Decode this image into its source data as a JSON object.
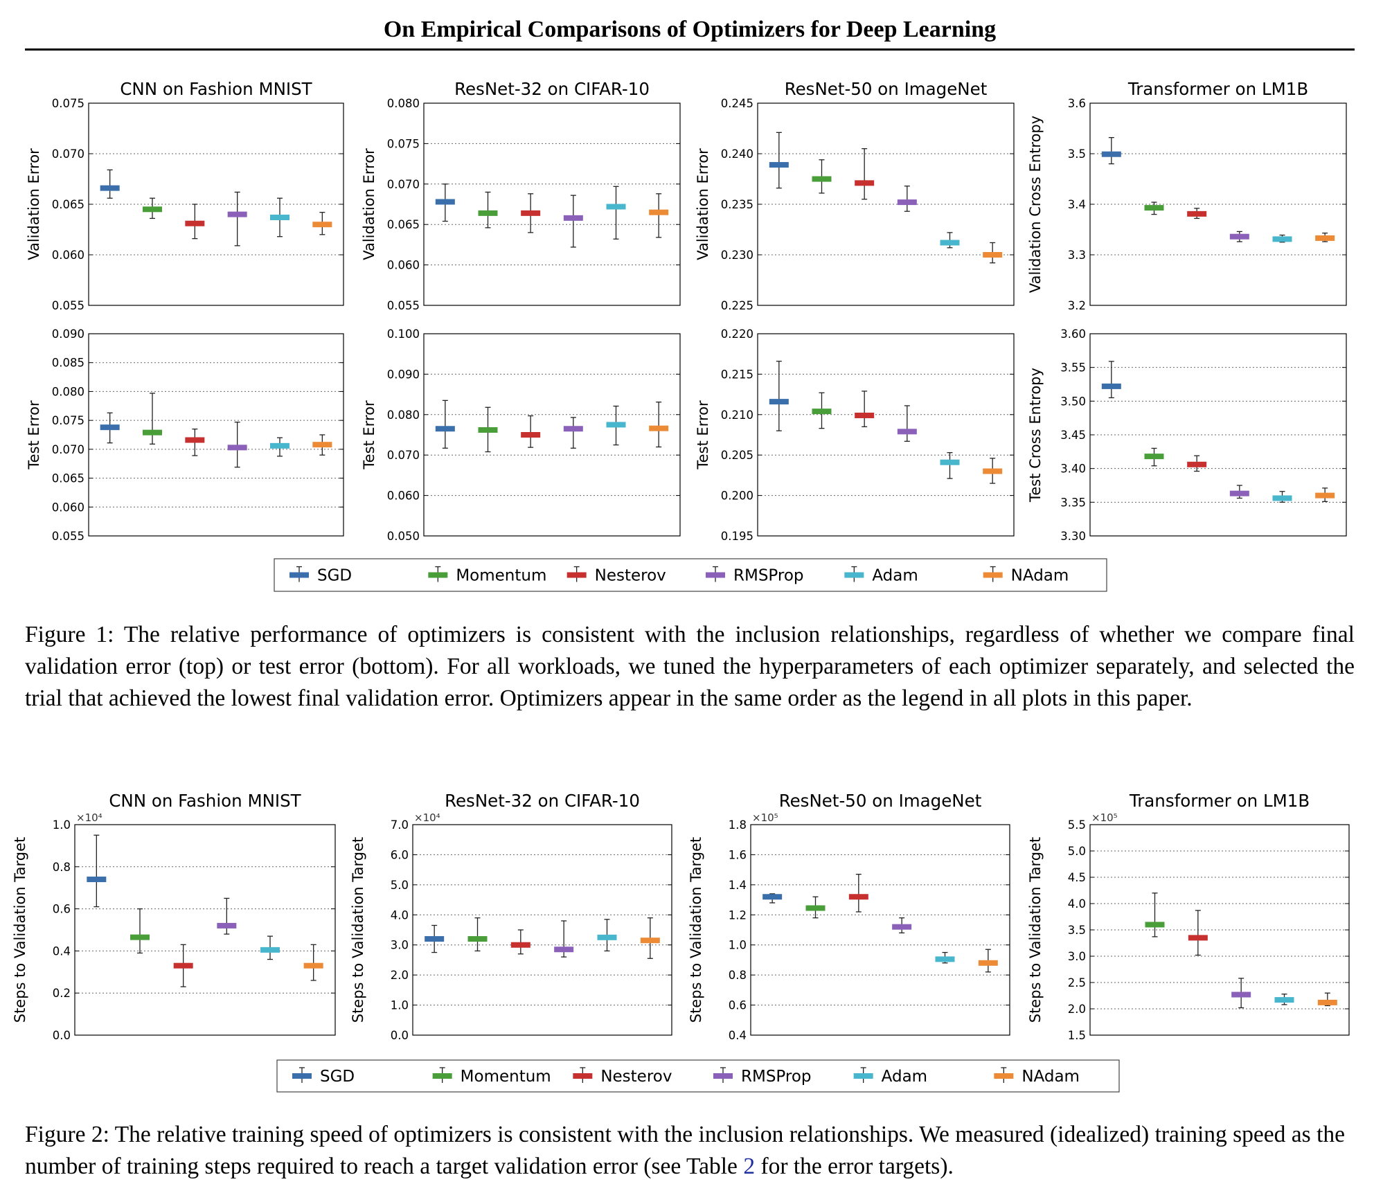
{
  "header": {
    "title": "On Empirical Comparisons of Optimizers for Deep Learning"
  },
  "legend": {
    "items": [
      {
        "label": "SGD",
        "color": "#3a6fab"
      },
      {
        "label": "Momentum",
        "color": "#4a9e3a"
      },
      {
        "label": "Nesterov",
        "color": "#c6302e"
      },
      {
        "label": "RMSProp",
        "color": "#8a60b8"
      },
      {
        "label": "Adam",
        "color": "#48b6cc"
      },
      {
        "label": "NAdam",
        "color": "#ec8a36"
      }
    ]
  },
  "figure1": {
    "caption": "Figure 1: The relative performance of optimizers is consistent with the inclusion relationships, regardless of whether we compare final validation error (top) or test error (bottom). For all workloads, we tuned the hyperparameters of each optimizer separately, and selected the trial that achieved the lowest final validation error. Optimizers appear in the same order as the legend in all plots in this paper."
  },
  "figure2": {
    "caption_before": "Figure 2: The relative training speed of optimizers is consistent with the inclusion relationships. We measured (idealized) training speed as the number of training steps required to reach a target validation error (see Table ",
    "caption_ref": "2",
    "caption_after": " for the error targets)."
  },
  "chart_data": [
    {
      "type": "scatter",
      "title": "CNN on Fashion MNIST",
      "ylabel": "Validation Error",
      "ylim": [
        0.055,
        0.075
      ],
      "yticks": [
        "0.055",
        "0.060",
        "0.065",
        "0.070",
        "0.075"
      ],
      "multiplier": "",
      "grid": true,
      "series": [
        {
          "name": "SGD",
          "value": 0.0666,
          "low": 0.0656,
          "high": 0.0684
        },
        {
          "name": "Momentum",
          "value": 0.0645,
          "low": 0.0636,
          "high": 0.0656
        },
        {
          "name": "Nesterov",
          "value": 0.0631,
          "low": 0.0616,
          "high": 0.065
        },
        {
          "name": "RMSProp",
          "value": 0.064,
          "low": 0.0609,
          "high": 0.0662
        },
        {
          "name": "Adam",
          "value": 0.0637,
          "low": 0.0618,
          "high": 0.0656
        },
        {
          "name": "NAdam",
          "value": 0.063,
          "low": 0.062,
          "high": 0.0642
        }
      ]
    },
    {
      "type": "scatter",
      "title": "ResNet-32 on CIFAR-10",
      "ylabel": "Validation Error",
      "ylim": [
        0.055,
        0.08
      ],
      "yticks": [
        "0.055",
        "0.060",
        "0.065",
        "0.070",
        "0.075",
        "0.080"
      ],
      "multiplier": "",
      "grid": true,
      "series": [
        {
          "name": "SGD",
          "value": 0.0678,
          "low": 0.0654,
          "high": 0.07
        },
        {
          "name": "Momentum",
          "value": 0.0664,
          "low": 0.0646,
          "high": 0.069
        },
        {
          "name": "Nesterov",
          "value": 0.0664,
          "low": 0.064,
          "high": 0.0688
        },
        {
          "name": "RMSProp",
          "value": 0.0658,
          "low": 0.0622,
          "high": 0.0686
        },
        {
          "name": "Adam",
          "value": 0.0672,
          "low": 0.0632,
          "high": 0.0697
        },
        {
          "name": "NAdam",
          "value": 0.0665,
          "low": 0.0634,
          "high": 0.0688
        }
      ]
    },
    {
      "type": "scatter",
      "title": "ResNet-50 on ImageNet",
      "ylabel": "Validation Error",
      "ylim": [
        0.225,
        0.245
      ],
      "yticks": [
        "0.225",
        "0.230",
        "0.235",
        "0.240",
        "0.245"
      ],
      "multiplier": "",
      "grid": true,
      "series": [
        {
          "name": "SGD",
          "value": 0.2389,
          "low": 0.2366,
          "high": 0.2421
        },
        {
          "name": "Momentum",
          "value": 0.2375,
          "low": 0.2361,
          "high": 0.2394
        },
        {
          "name": "Nesterov",
          "value": 0.2371,
          "low": 0.2355,
          "high": 0.2405
        },
        {
          "name": "RMSProp",
          "value": 0.2352,
          "low": 0.2343,
          "high": 0.2368
        },
        {
          "name": "Adam",
          "value": 0.2312,
          "low": 0.2307,
          "high": 0.2322
        },
        {
          "name": "NAdam",
          "value": 0.23,
          "low": 0.2292,
          "high": 0.2312
        }
      ]
    },
    {
      "type": "scatter",
      "title": "Transformer on LM1B",
      "ylabel": "Validation Cross Entropy",
      "ylim": [
        3.2,
        3.6
      ],
      "yticks": [
        "3.2",
        "3.3",
        "3.4",
        "3.5",
        "3.6"
      ],
      "multiplier": "",
      "grid": true,
      "series": [
        {
          "name": "SGD",
          "value": 3.499,
          "low": 3.48,
          "high": 3.532
        },
        {
          "name": "Momentum",
          "value": 3.393,
          "low": 3.38,
          "high": 3.404
        },
        {
          "name": "Nesterov",
          "value": 3.381,
          "low": 3.372,
          "high": 3.392
        },
        {
          "name": "RMSProp",
          "value": 3.336,
          "low": 3.326,
          "high": 3.346
        },
        {
          "name": "Adam",
          "value": 3.331,
          "low": 3.325,
          "high": 3.339
        },
        {
          "name": "NAdam",
          "value": 3.333,
          "low": 3.326,
          "high": 3.343
        }
      ]
    },
    {
      "type": "scatter",
      "title": "",
      "ylabel": "Test Error",
      "ylim": [
        0.055,
        0.09
      ],
      "yticks": [
        "0.055",
        "0.060",
        "0.065",
        "0.070",
        "0.075",
        "0.080",
        "0.085",
        "0.090"
      ],
      "multiplier": "",
      "grid": true,
      "series": [
        {
          "name": "SGD",
          "value": 0.0738,
          "low": 0.0711,
          "high": 0.0763
        },
        {
          "name": "Momentum",
          "value": 0.0729,
          "low": 0.0709,
          "high": 0.0797
        },
        {
          "name": "Nesterov",
          "value": 0.0716,
          "low": 0.0689,
          "high": 0.0735
        },
        {
          "name": "RMSProp",
          "value": 0.0703,
          "low": 0.0669,
          "high": 0.0747
        },
        {
          "name": "Adam",
          "value": 0.0706,
          "low": 0.0688,
          "high": 0.072
        },
        {
          "name": "NAdam",
          "value": 0.0708,
          "low": 0.069,
          "high": 0.0725
        }
      ]
    },
    {
      "type": "scatter",
      "title": "",
      "ylabel": "Test Error",
      "ylim": [
        0.05,
        0.1
      ],
      "yticks": [
        "0.050",
        "0.060",
        "0.070",
        "0.080",
        "0.090",
        "0.100"
      ],
      "multiplier": "",
      "grid": true,
      "series": [
        {
          "name": "SGD",
          "value": 0.0765,
          "low": 0.0717,
          "high": 0.0835
        },
        {
          "name": "Momentum",
          "value": 0.0762,
          "low": 0.0708,
          "high": 0.0818
        },
        {
          "name": "Nesterov",
          "value": 0.075,
          "low": 0.0719,
          "high": 0.0797
        },
        {
          "name": "RMSProp",
          "value": 0.0765,
          "low": 0.0717,
          "high": 0.0793
        },
        {
          "name": "Adam",
          "value": 0.0775,
          "low": 0.0725,
          "high": 0.0821
        },
        {
          "name": "NAdam",
          "value": 0.0766,
          "low": 0.072,
          "high": 0.0831
        }
      ]
    },
    {
      "type": "scatter",
      "title": "",
      "ylabel": "Test Error",
      "ylim": [
        0.195,
        0.22
      ],
      "yticks": [
        "0.195",
        "0.200",
        "0.205",
        "0.210",
        "0.215",
        "0.220"
      ],
      "multiplier": "",
      "grid": true,
      "series": [
        {
          "name": "SGD",
          "value": 0.2116,
          "low": 0.208,
          "high": 0.2166
        },
        {
          "name": "Momentum",
          "value": 0.2104,
          "low": 0.2083,
          "high": 0.2127
        },
        {
          "name": "Nesterov",
          "value": 0.2099,
          "low": 0.2085,
          "high": 0.2129
        },
        {
          "name": "RMSProp",
          "value": 0.2079,
          "low": 0.2067,
          "high": 0.2111
        },
        {
          "name": "Adam",
          "value": 0.2041,
          "low": 0.2021,
          "high": 0.2053
        },
        {
          "name": "NAdam",
          "value": 0.203,
          "low": 0.2015,
          "high": 0.2046
        }
      ]
    },
    {
      "type": "scatter",
      "title": "",
      "ylabel": "Test Cross Entropy",
      "ylim": [
        3.3,
        3.6
      ],
      "yticks": [
        "3.30",
        "3.35",
        "3.40",
        "3.45",
        "3.50",
        "3.55",
        "3.60"
      ],
      "multiplier": "",
      "grid": true,
      "series": [
        {
          "name": "SGD",
          "value": 3.522,
          "low": 3.505,
          "high": 3.559
        },
        {
          "name": "Momentum",
          "value": 3.418,
          "low": 3.404,
          "high": 3.43
        },
        {
          "name": "Nesterov",
          "value": 3.406,
          "low": 3.396,
          "high": 3.419
        },
        {
          "name": "RMSProp",
          "value": 3.363,
          "low": 3.356,
          "high": 3.375
        },
        {
          "name": "Adam",
          "value": 3.356,
          "low": 3.35,
          "high": 3.366
        },
        {
          "name": "NAdam",
          "value": 3.36,
          "low": 3.351,
          "high": 3.371
        }
      ]
    },
    {
      "type": "scatter",
      "title": "CNN on Fashion MNIST",
      "ylabel": "Steps to Validation Target",
      "ylim": [
        0.0,
        1.0
      ],
      "yticks": [
        "0.0",
        "0.2",
        "0.4",
        "0.6",
        "0.8",
        "1.0"
      ],
      "multiplier": "×10⁴",
      "grid": true,
      "series": [
        {
          "name": "SGD",
          "value": 0.74,
          "low": 0.61,
          "high": 0.95
        },
        {
          "name": "Momentum",
          "value": 0.465,
          "low": 0.39,
          "high": 0.6
        },
        {
          "name": "Nesterov",
          "value": 0.33,
          "low": 0.23,
          "high": 0.43
        },
        {
          "name": "RMSProp",
          "value": 0.52,
          "low": 0.48,
          "high": 0.65
        },
        {
          "name": "Adam",
          "value": 0.405,
          "low": 0.36,
          "high": 0.47
        },
        {
          "name": "NAdam",
          "value": 0.33,
          "low": 0.26,
          "high": 0.43
        }
      ]
    },
    {
      "type": "scatter",
      "title": "ResNet-32 on CIFAR-10",
      "ylabel": "Steps to Validation Target",
      "ylim": [
        0.0,
        7.0
      ],
      "yticks": [
        "0.0",
        "1.0",
        "2.0",
        "3.0",
        "4.0",
        "5.0",
        "6.0",
        "7.0"
      ],
      "multiplier": "×10⁴",
      "grid": true,
      "series": [
        {
          "name": "SGD",
          "value": 3.2,
          "low": 2.75,
          "high": 3.65
        },
        {
          "name": "Momentum",
          "value": 3.2,
          "low": 2.8,
          "high": 3.9
        },
        {
          "name": "Nesterov",
          "value": 3.0,
          "low": 2.7,
          "high": 3.5
        },
        {
          "name": "RMSProp",
          "value": 2.85,
          "low": 2.6,
          "high": 3.8
        },
        {
          "name": "Adam",
          "value": 3.25,
          "low": 2.8,
          "high": 3.85
        },
        {
          "name": "NAdam",
          "value": 3.15,
          "low": 2.55,
          "high": 3.9
        }
      ]
    },
    {
      "type": "scatter",
      "title": "ResNet-50 on ImageNet",
      "ylabel": "Steps to Validation Target",
      "ylim": [
        0.4,
        1.8
      ],
      "yticks": [
        "0.4",
        "0.6",
        "0.8",
        "1.0",
        "1.2",
        "1.4",
        "1.6",
        "1.8"
      ],
      "multiplier": "×10⁵",
      "grid": true,
      "series": [
        {
          "name": "SGD",
          "value": 1.32,
          "low": 1.28,
          "high": 1.34
        },
        {
          "name": "Momentum",
          "value": 1.245,
          "low": 1.18,
          "high": 1.32
        },
        {
          "name": "Nesterov",
          "value": 1.32,
          "low": 1.22,
          "high": 1.47
        },
        {
          "name": "RMSProp",
          "value": 1.12,
          "low": 1.08,
          "high": 1.18
        },
        {
          "name": "Adam",
          "value": 0.905,
          "low": 0.88,
          "high": 0.95
        },
        {
          "name": "NAdam",
          "value": 0.88,
          "low": 0.82,
          "high": 0.97
        }
      ]
    },
    {
      "type": "scatter",
      "title": "Transformer on LM1B",
      "ylabel": "Steps to Validation Target",
      "ylim": [
        1.5,
        5.5
      ],
      "yticks": [
        "1.5",
        "2.0",
        "2.5",
        "3.0",
        "3.5",
        "4.0",
        "4.5",
        "5.0",
        "5.5"
      ],
      "multiplier": "×10⁵",
      "grid": true,
      "series": [
        {
          "name": "Momentum",
          "value": 3.6,
          "low": 3.37,
          "high": 4.2
        },
        {
          "name": "Nesterov",
          "value": 3.35,
          "low": 3.02,
          "high": 3.87
        },
        {
          "name": "RMSProp",
          "value": 2.27,
          "low": 2.02,
          "high": 2.58
        },
        {
          "name": "Adam",
          "value": 2.17,
          "low": 2.08,
          "high": 2.28
        },
        {
          "name": "NAdam",
          "value": 2.12,
          "low": 2.06,
          "high": 2.3
        }
      ]
    }
  ]
}
